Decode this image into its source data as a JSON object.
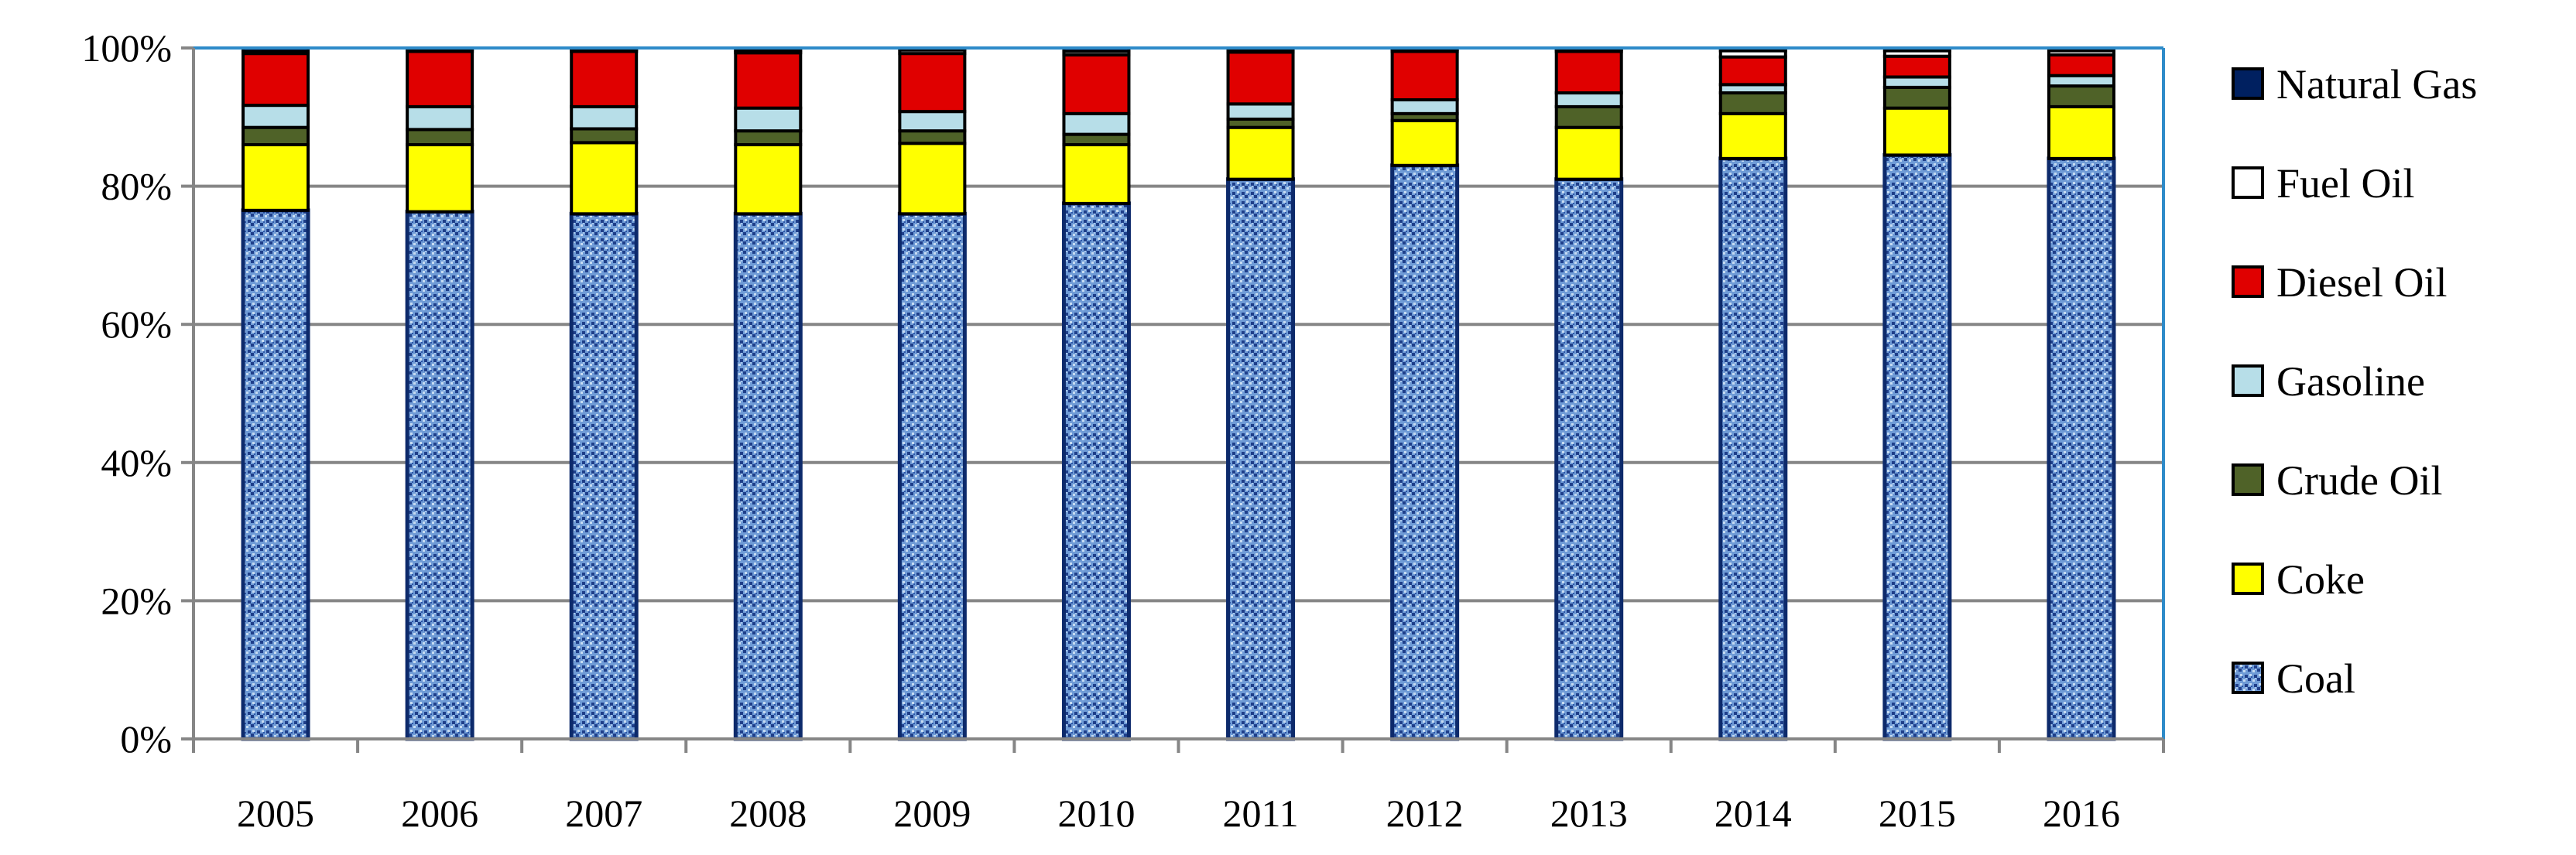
{
  "chart_data": {
    "type": "bar",
    "stacked": true,
    "percent": true,
    "categories": [
      "2005",
      "2006",
      "2007",
      "2008",
      "2009",
      "2010",
      "2011",
      "2012",
      "2013",
      "2014",
      "2015",
      "2016"
    ],
    "ylim": [
      0,
      100
    ],
    "yticks": [
      0,
      20,
      40,
      60,
      80,
      100
    ],
    "ytick_labels": [
      "0%",
      "20%",
      "40%",
      "60%",
      "80%",
      "100%"
    ],
    "grid": true,
    "legend_position": "right",
    "series": [
      {
        "name": "Coal",
        "color": "#4f81bd",
        "pattern": "dotted-blue",
        "values": [
          76.5,
          76.3,
          76.0,
          76.0,
          76.0,
          77.5,
          81.0,
          83.0,
          81.0,
          84.0,
          84.5,
          84.0
        ]
      },
      {
        "name": "Coke",
        "color": "#ffff00",
        "values": [
          9.5,
          9.7,
          10.3,
          10.0,
          10.2,
          8.5,
          7.5,
          6.5,
          7.5,
          6.5,
          6.8,
          7.5
        ]
      },
      {
        "name": "Crude Oil",
        "color": "#4f6228",
        "values": [
          2.5,
          2.2,
          2.0,
          2.0,
          1.8,
          1.5,
          1.2,
          1.0,
          3.0,
          3.0,
          3.0,
          3.0
        ]
      },
      {
        "name": "Gasoline",
        "color": "#b7dee8",
        "values": [
          3.2,
          3.3,
          3.2,
          3.3,
          2.8,
          3.0,
          2.2,
          2.0,
          2.0,
          1.2,
          1.5,
          1.5
        ]
      },
      {
        "name": "Diesel Oil",
        "color": "#e00000",
        "values": [
          7.5,
          8.0,
          8.0,
          8.0,
          8.4,
          8.5,
          7.5,
          7.0,
          6.0,
          4.0,
          3.0,
          3.0
        ]
      },
      {
        "name": "Fuel Oil",
        "color": "#ffffff",
        "values": [
          0.3,
          0.3,
          0.3,
          0.4,
          0.5,
          0.5,
          0.4,
          0.3,
          0.3,
          0.9,
          0.8,
          0.6
        ]
      },
      {
        "name": "Natural Gas",
        "color": "#002060",
        "values": [
          0.5,
          0.2,
          0.2,
          0.3,
          0.3,
          0.5,
          0.2,
          0.2,
          0.2,
          0.4,
          0.4,
          0.4
        ]
      }
    ],
    "legend_order": [
      "Natural Gas",
      "Fuel Oil",
      "Diesel Oil",
      "Gasoline",
      "Crude Oil",
      "Coke",
      "Coal"
    ]
  }
}
